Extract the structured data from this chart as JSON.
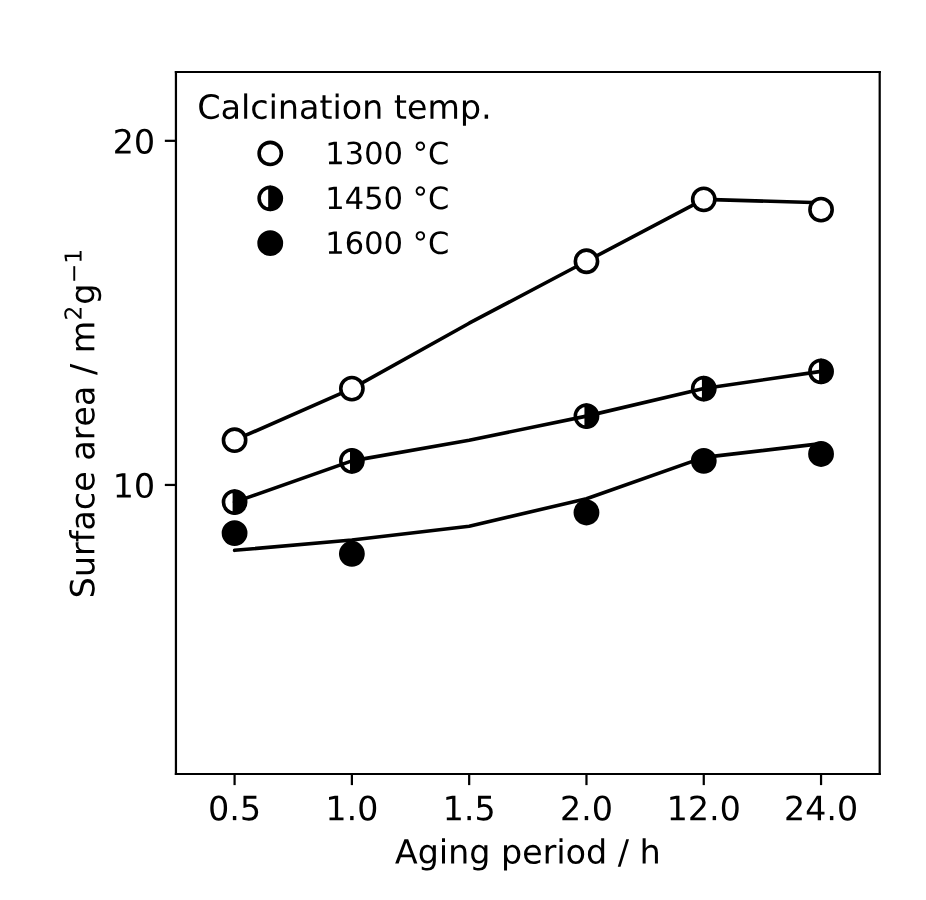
{
  "chart_data": {
    "type": "line",
    "xlabel": "Aging period / h",
    "ylabel": "Surface area / m$^{2}$g$^{−1}$",
    "legend_title": "Calcination temp.",
    "legend": "top left",
    "marker": "circle",
    "grid": false,
    "categories": [
      "0.5",
      "1.0",
      "1.5",
      "2.0",
      "12.0",
      "24.0"
    ],
    "ylim": [
      1.6,
      22
    ],
    "yticks": [
      10,
      20
    ],
    "series": [
      {
        "name": "1300 °C",
        "type": "scatter",
        "color": "#000000",
        "values": [
          11.3,
          12.8,
          null,
          16.5,
          18.3,
          18.0
        ]
      },
      {
        "name": "1450 °C",
        "type": "scatter",
        "color": "#000000",
        "values": [
          9.5,
          10.7,
          null,
          12.0,
          12.8,
          13.3
        ]
      },
      {
        "name": "1600 °C",
        "type": "scatter",
        "color": "#000000",
        "values": [
          8.6,
          8.0,
          null,
          9.2,
          10.7,
          10.9
        ]
      },
      {
        "marker": "none",
        "color": "#000000",
        "line_style": "solid",
        "values": [
          11.3,
          12.8,
          14.7,
          16.5,
          18.3,
          18.2
        ]
      },
      {
        "color": "#000000",
        "line_style": "solid",
        "values": [
          9.5,
          10.7,
          11.3,
          12.0,
          12.8,
          13.3
        ]
      },
      {
        "marker": "none",
        "color": "#000000",
        "line_style": "solid",
        "values": [
          8.1,
          8.4,
          8.8,
          9.6,
          10.8,
          11.2
        ]
      }
    ]
  }
}
